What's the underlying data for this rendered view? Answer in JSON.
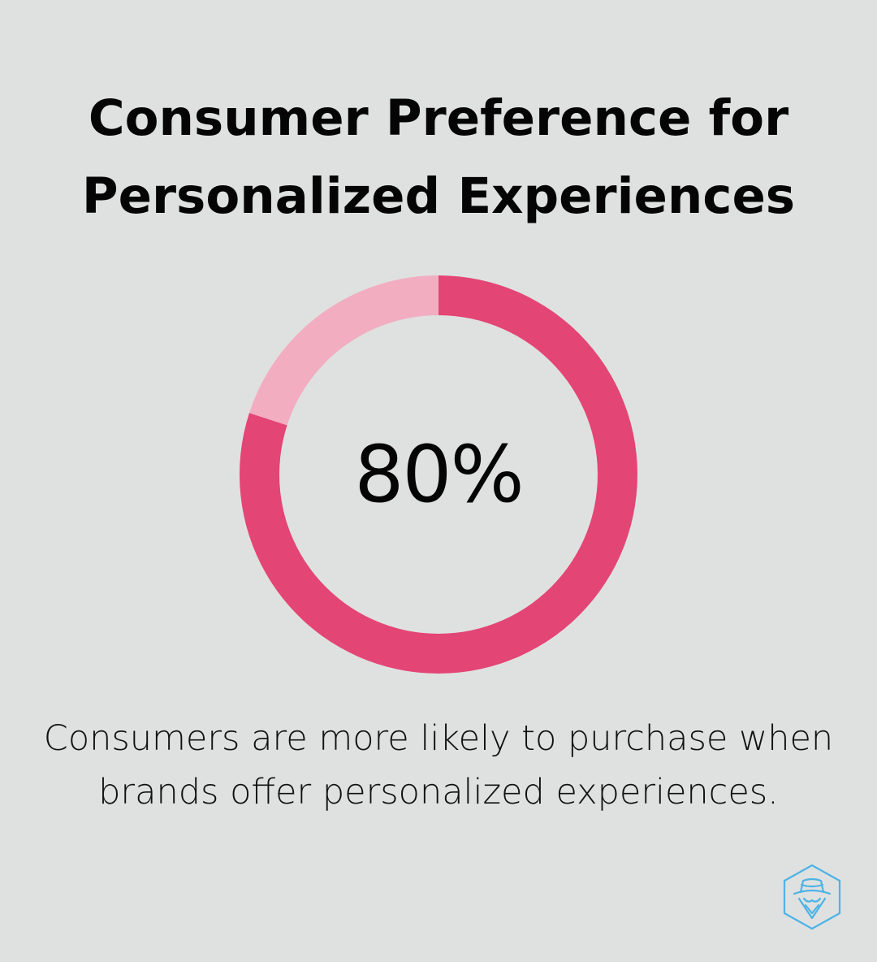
{
  "title": {
    "line1": "Consumer Preference for",
    "line2": "Personalized Experiences"
  },
  "chart_data": {
    "type": "pie",
    "variant": "donut",
    "center_label": "80%",
    "slices": [
      {
        "value": 80,
        "color": "#e34575"
      },
      {
        "value": 20,
        "color": "#f2adc1"
      }
    ]
  },
  "caption": {
    "line1": "Consumers are more likely to purchase when",
    "line2": "brands offer personalized experiences."
  },
  "colors": {
    "background": "#dfe1e0",
    "primary": "#e34575",
    "secondary": "#f2adc1",
    "logo": "#4db3e6"
  },
  "logo": {
    "icon": "spy-hat-hexagon-icon"
  }
}
